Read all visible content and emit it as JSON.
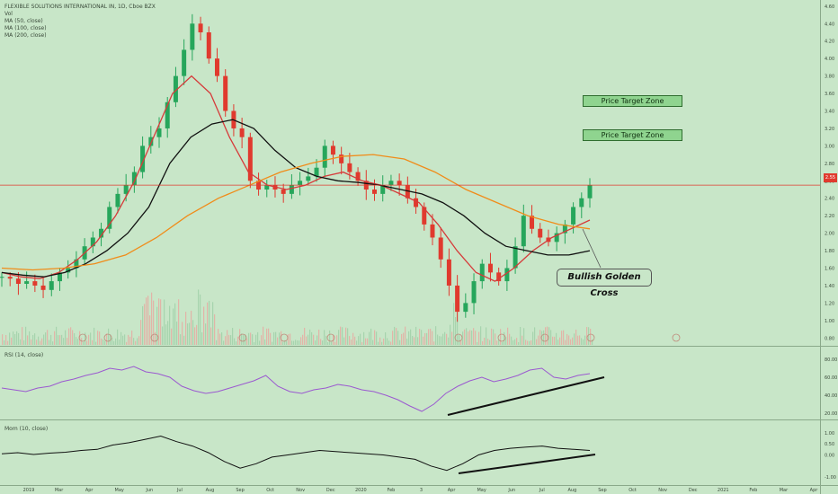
{
  "legend": {
    "title": "FLEXIBLE SOLUTIONS INTERNATIONAL IN, 1D, Cboe BZX",
    "vol": "Vol",
    "ma50": "MA (50, close)",
    "ma100": "MA (100, close)",
    "ma200": "MA (200, close)"
  },
  "annotations": {
    "target1": "Price Target Zone",
    "target2": "Price Target Zone",
    "golden_cross": "Bullish Golden Cross"
  },
  "current_price_label": "2.55",
  "rsi_label": "RSI (14, close)",
  "mom_label": "Mom (10, close)",
  "colors": {
    "background": "#c8e6c8",
    "up_candle": "#26a65b",
    "down_candle": "#e03a2e",
    "ma50": "#d63a3a",
    "ma100": "#111111",
    "ma200": "#f08c1a",
    "rsi": "#9b59d0",
    "momentum": "#111111"
  },
  "chart_data": [
    {
      "type": "candlestick",
      "title": "FLEXIBLE SOLUTIONS INTERNATIONAL IN, 1D, Cboe BZX",
      "x_ticks": [
        "2019",
        "Mar",
        "Apr",
        "May",
        "Jun",
        "Jul",
        "Aug",
        "Sep",
        "Oct",
        "Nov",
        "Dec",
        "2020",
        "Feb",
        "3",
        "Apr",
        "May",
        "Jun",
        "Jul",
        "Aug",
        "Sep",
        "Oct",
        "Nov",
        "Dec",
        "2021",
        "Feb",
        "Mar",
        "Apr"
      ],
      "y_ticks": [
        "4.60",
        "4.40",
        "4.20",
        "4.00",
        "3.80",
        "3.60",
        "3.40",
        "3.20",
        "3.00",
        "2.80",
        "2.60",
        "2.40",
        "2.20",
        "2.00",
        "1.80",
        "1.60",
        "1.40",
        "1.20",
        "1.00",
        "0.80"
      ],
      "ylim": [
        0.7,
        4.65
      ],
      "current_price": 2.55,
      "close_series": [
        1.5,
        1.48,
        1.42,
        1.45,
        1.4,
        1.35,
        1.45,
        1.55,
        1.6,
        1.7,
        1.85,
        1.95,
        2.05,
        2.3,
        2.45,
        2.55,
        2.7,
        3.0,
        3.1,
        3.2,
        3.5,
        3.8,
        4.1,
        4.4,
        4.3,
        4.0,
        3.8,
        3.4,
        3.2,
        3.1,
        2.6,
        2.5,
        2.55,
        2.5,
        2.45,
        2.55,
        2.6,
        2.65,
        2.75,
        3.0,
        2.9,
        2.8,
        2.7,
        2.6,
        2.5,
        2.45,
        2.55,
        2.6,
        2.55,
        2.4,
        2.3,
        2.1,
        1.95,
        1.7,
        1.4,
        1.1,
        1.2,
        1.45,
        1.65,
        1.55,
        1.45,
        1.6,
        1.85,
        2.2,
        2.05,
        1.95,
        1.9,
        2.0,
        2.1,
        2.3,
        2.4,
        2.55
      ],
      "series": [
        {
          "name": "MA (50, close)",
          "values": [
            1.55,
            1.5,
            1.48,
            1.55,
            1.7,
            1.9,
            2.2,
            2.6,
            3.1,
            3.6,
            3.8,
            3.6,
            3.1,
            2.7,
            2.55,
            2.5,
            2.55,
            2.65,
            2.7,
            2.6,
            2.55,
            2.45,
            2.35,
            2.1,
            1.8,
            1.55,
            1.45,
            1.6,
            1.8,
            1.95,
            2.05,
            2.15
          ]
        },
        {
          "name": "MA (100, close)",
          "values": [
            1.55,
            1.52,
            1.5,
            1.55,
            1.65,
            1.8,
            2.0,
            2.3,
            2.8,
            3.1,
            3.25,
            3.3,
            3.2,
            2.95,
            2.75,
            2.65,
            2.6,
            2.58,
            2.55,
            2.5,
            2.45,
            2.35,
            2.2,
            2.0,
            1.85,
            1.8,
            1.75,
            1.75,
            1.8
          ]
        },
        {
          "name": "MA (200, close)",
          "values": [
            1.6,
            1.58,
            1.6,
            1.65,
            1.75,
            1.95,
            2.2,
            2.4,
            2.55,
            2.7,
            2.8,
            2.88,
            2.9,
            2.85,
            2.7,
            2.5,
            2.35,
            2.2,
            2.1,
            2.05
          ]
        }
      ]
    },
    {
      "type": "line",
      "title": "RSI (14, close)",
      "y_ticks": [
        "80.00",
        "60.00",
        "40.00",
        "20.00"
      ],
      "ylim": [
        15,
        90
      ],
      "series": [
        {
          "name": "RSI (14, close)",
          "values": [
            48,
            46,
            44,
            48,
            50,
            55,
            58,
            62,
            65,
            70,
            68,
            72,
            66,
            64,
            60,
            50,
            45,
            42,
            44,
            48,
            52,
            56,
            62,
            50,
            44,
            42,
            46,
            48,
            52,
            50,
            46,
            44,
            40,
            35,
            28,
            22,
            30,
            42,
            50,
            56,
            60,
            55,
            58,
            62,
            68,
            70,
            60,
            58,
            62,
            64
          ]
        }
      ]
    },
    {
      "type": "line",
      "title": "Mom (10, close)",
      "y_ticks": [
        "1.00",
        "0.50",
        "0.00",
        "-1.00"
      ],
      "ylim": [
        -1.2,
        1.4
      ],
      "series": [
        {
          "name": "Mom (10, close)",
          "values": [
            0.05,
            0.1,
            0.02,
            0.08,
            0.12,
            0.2,
            0.25,
            0.45,
            0.55,
            0.7,
            0.85,
            0.6,
            0.4,
            0.1,
            -0.3,
            -0.6,
            -0.4,
            -0.1,
            0.0,
            0.1,
            0.2,
            0.15,
            0.1,
            0.05,
            0.0,
            -0.1,
            -0.2,
            -0.5,
            -0.7,
            -0.4,
            0.0,
            0.2,
            0.3,
            0.35,
            0.4,
            0.3,
            0.25,
            0.2
          ]
        }
      ]
    }
  ]
}
